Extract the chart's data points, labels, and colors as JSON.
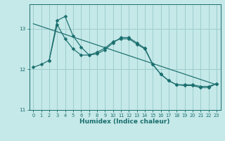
{
  "xlabel": "Humidex (Indice chaleur)",
  "bg_color": "#c5e8e8",
  "grid_color": "#9dcece",
  "line_color": "#1a6e6e",
  "xlim": [
    -0.5,
    23.5
  ],
  "ylim": [
    11.0,
    13.6
  ],
  "yticks": [
    11,
    12,
    13
  ],
  "xticks": [
    0,
    1,
    2,
    3,
    4,
    5,
    6,
    7,
    8,
    9,
    10,
    11,
    12,
    13,
    14,
    15,
    16,
    17,
    18,
    19,
    20,
    21,
    22,
    23
  ],
  "series1_x": [
    0,
    1,
    2,
    3,
    4,
    5,
    6,
    7,
    8,
    9,
    10,
    11,
    12,
    13,
    14,
    15,
    16,
    17,
    18,
    19,
    20,
    21,
    22,
    23
  ],
  "series1_y": [
    12.05,
    12.12,
    12.22,
    13.1,
    12.75,
    12.5,
    12.35,
    12.35,
    12.42,
    12.52,
    12.68,
    12.75,
    12.75,
    12.62,
    12.5,
    12.12,
    11.88,
    11.72,
    11.62,
    11.62,
    11.62,
    11.58,
    11.58,
    11.65
  ],
  "series2_x": [
    2,
    3,
    4,
    5,
    6,
    7,
    8,
    9,
    10,
    11,
    12,
    13,
    14,
    15,
    16,
    17,
    18,
    19,
    20,
    21,
    22,
    23
  ],
  "series2_y": [
    12.22,
    13.2,
    13.3,
    12.82,
    12.55,
    12.35,
    12.38,
    12.48,
    12.65,
    12.78,
    12.78,
    12.65,
    12.52,
    12.12,
    11.88,
    11.72,
    11.62,
    11.6,
    11.6,
    11.55,
    11.55,
    11.65
  ],
  "trend_x": [
    0,
    23
  ],
  "trend_y": [
    13.12,
    11.62
  ]
}
